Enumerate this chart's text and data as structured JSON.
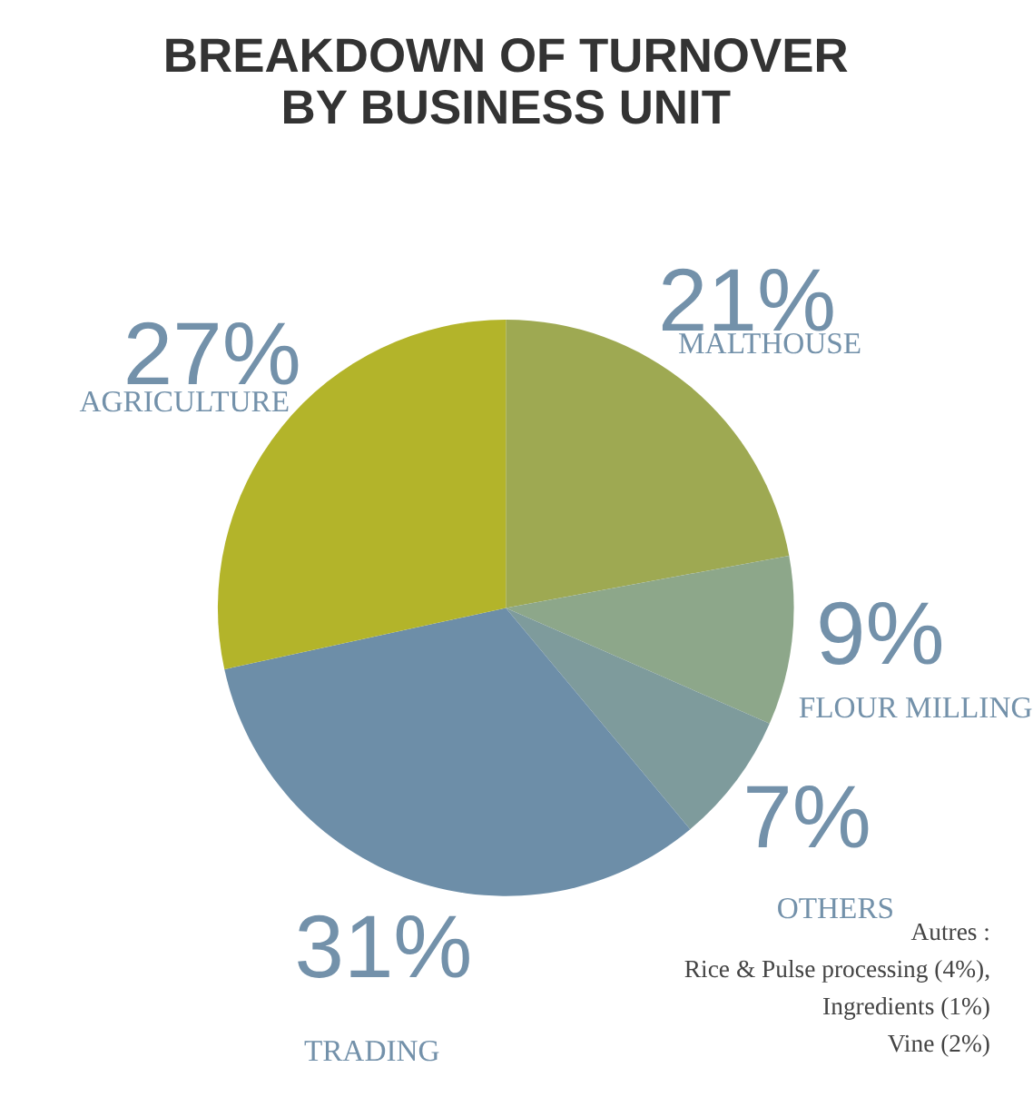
{
  "chart_data": {
    "type": "pie",
    "title": "BREAKDOWN OF TURNOVER\nBY BUSINESS UNIT",
    "categories": [
      "MALTHOUSE",
      "FLOUR MILLING",
      "OTHERS",
      "TRADING",
      "AGRICULTURE"
    ],
    "values": [
      21,
      9,
      7,
      31,
      27
    ],
    "value_labels": [
      "21%",
      "9%",
      "7%",
      "31%",
      "27%"
    ],
    "colors": [
      "#9ea952",
      "#8da78a",
      "#7e9b9c",
      "#6d8ea8",
      "#b3b42a"
    ],
    "legend": false,
    "annotations": [
      "Autres :",
      "Rice & Pulse processing (4%),",
      "Ingredients (1%)",
      "Vine (2%)"
    ]
  }
}
